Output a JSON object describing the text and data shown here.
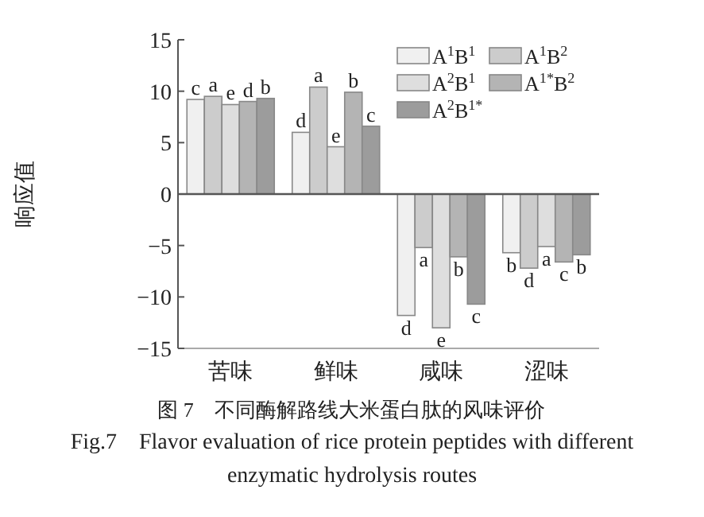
{
  "chart_data": {
    "type": "bar",
    "title": "图 7　不同酶解路线大米蛋白肽的风味评价",
    "subtitle": "Fig.7　Flavor evaluation of rice protein peptides with different enzymatic hydrolysis routes",
    "ylabel": "响应值",
    "categories": [
      "苦味",
      "鲜味",
      "咸味",
      "涩味"
    ],
    "series": [
      {
        "name": "A$^{1}$B$^{1}$",
        "color": "#f0f0f0",
        "values": [
          9.2,
          6.0,
          -11.8,
          -5.7
        ],
        "value_labels": [
          "c",
          "d",
          "d",
          "b"
        ]
      },
      {
        "name": "A$^{1}$B$^{2}$",
        "color": "#cccccc",
        "values": [
          9.5,
          10.4,
          -5.2,
          -7.2
        ],
        "value_labels": [
          "a",
          "a",
          "a",
          "d"
        ]
      },
      {
        "name": "A$^{2}$B$^{1}$",
        "color": "#dedede",
        "values": [
          8.7,
          4.6,
          -13.0,
          -5.1
        ],
        "value_labels": [
          "e",
          "e",
          "e",
          "a"
        ]
      },
      {
        "name": "A$^{1*}$B$^{2}$",
        "color": "#b4b4b4",
        "values": [
          9.0,
          9.9,
          -6.1,
          -6.6
        ],
        "value_labels": [
          "d",
          "b",
          "b",
          "c"
        ]
      },
      {
        "name": "A$^{2}$B$^{1*}$",
        "color": "#9c9c9c",
        "values": [
          9.3,
          6.6,
          -10.7,
          -5.9
        ],
        "value_labels": [
          "b",
          "c",
          "c",
          "b"
        ]
      }
    ],
    "ylim": [
      -15,
      15
    ],
    "yticks": [
      -15,
      -10,
      -5,
      0,
      5,
      10,
      15
    ],
    "legend": "top right"
  }
}
